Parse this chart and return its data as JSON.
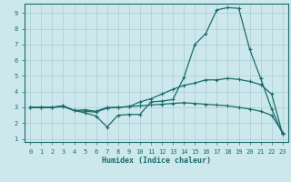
{
  "xlabel": "Humidex (Indice chaleur)",
  "background_color": "#cce8ec",
  "grid_color": "#aacdd4",
  "line_color": "#1a6b6b",
  "xlim": [
    -0.5,
    23.5
  ],
  "ylim": [
    0.8,
    9.6
  ],
  "xticks": [
    0,
    1,
    2,
    3,
    4,
    5,
    6,
    7,
    8,
    9,
    10,
    11,
    12,
    13,
    14,
    15,
    16,
    17,
    18,
    19,
    20,
    21,
    22,
    23
  ],
  "yticks": [
    1,
    2,
    3,
    4,
    5,
    6,
    7,
    8,
    9
  ],
  "line1_x": [
    0,
    1,
    2,
    3,
    4,
    5,
    6,
    7,
    8,
    9,
    10,
    11,
    12,
    13,
    14,
    15,
    16,
    17,
    18,
    19,
    20,
    21,
    22,
    23
  ],
  "line1_y": [
    3.0,
    3.0,
    3.0,
    3.1,
    2.8,
    2.85,
    2.75,
    3.0,
    3.0,
    3.05,
    3.35,
    3.55,
    3.85,
    4.15,
    4.4,
    4.55,
    4.75,
    4.75,
    4.85,
    4.78,
    4.65,
    4.45,
    3.85,
    1.3
  ],
  "line2_x": [
    0,
    1,
    2,
    3,
    4,
    5,
    6,
    7,
    8,
    9,
    10,
    11,
    12,
    13,
    14,
    15,
    16,
    17,
    18,
    19,
    20,
    21,
    22,
    23
  ],
  "line2_y": [
    3.0,
    3.0,
    3.0,
    3.1,
    2.8,
    2.65,
    2.45,
    1.75,
    2.5,
    2.55,
    2.55,
    3.35,
    3.4,
    3.5,
    4.9,
    7.0,
    7.7,
    9.2,
    9.35,
    9.3,
    6.7,
    4.85,
    2.9,
    1.3
  ],
  "line3_x": [
    0,
    1,
    2,
    3,
    4,
    5,
    6,
    7,
    8,
    9,
    10,
    11,
    12,
    13,
    14,
    15,
    16,
    17,
    18,
    19,
    20,
    21,
    22,
    23
  ],
  "line3_y": [
    3.0,
    3.0,
    3.0,
    3.05,
    2.8,
    2.75,
    2.7,
    2.95,
    3.0,
    3.05,
    3.1,
    3.15,
    3.2,
    3.25,
    3.3,
    3.25,
    3.2,
    3.15,
    3.1,
    3.0,
    2.9,
    2.75,
    2.5,
    1.4
  ]
}
